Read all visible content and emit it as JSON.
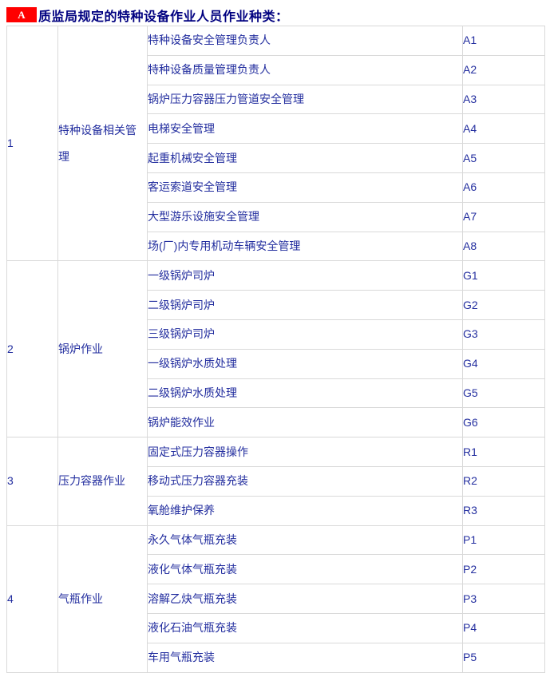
{
  "colors": {
    "badge_bg": "#ff0000",
    "badge_fg": "#ffffff",
    "title_color": "#000080",
    "table_text": "#232e9f",
    "border_color": "#d9d9d9"
  },
  "header": {
    "badge": "A",
    "title": "质监局规定的特种设备作业人员作业种类："
  },
  "table": {
    "sections": [
      {
        "no": "1",
        "category": "特种设备相关管理",
        "items": [
          {
            "name": "特种设备安全管理负责人",
            "code": "A1"
          },
          {
            "name": "特种设备质量管理负责人",
            "code": "A2"
          },
          {
            "name": "锅炉压力容器压力管道安全管理",
            "code": "A3"
          },
          {
            "name": "电梯安全管理",
            "code": "A4"
          },
          {
            "name": "起重机械安全管理",
            "code": "A5"
          },
          {
            "name": "客运索道安全管理",
            "code": "A6"
          },
          {
            "name": "大型游乐设施安全管理",
            "code": "A7"
          },
          {
            "name": "场(厂)内专用机动车辆安全管理",
            "code": "A8"
          }
        ]
      },
      {
        "no": "2",
        "category": "锅炉作业",
        "items": [
          {
            "name": "一级锅炉司炉",
            "code": "G1"
          },
          {
            "name": "二级锅炉司炉",
            "code": "G2"
          },
          {
            "name": "三级锅炉司炉",
            "code": "G3"
          },
          {
            "name": "一级锅炉水质处理",
            "code": "G4"
          },
          {
            "name": "二级锅炉水质处理",
            "code": "G5"
          },
          {
            "name": "锅炉能效作业",
            "code": "G6"
          }
        ]
      },
      {
        "no": "3",
        "category": "压力容器作业",
        "items": [
          {
            "name": "固定式压力容器操作",
            "code": "R1"
          },
          {
            "name": "移动式压力容器充装",
            "code": "R2"
          },
          {
            "name": "氧舱维护保养",
            "code": "R3"
          }
        ]
      },
      {
        "no": "4",
        "category": "气瓶作业",
        "items": [
          {
            "name": "永久气体气瓶充装",
            "code": "P1"
          },
          {
            "name": "液化气体气瓶充装",
            "code": "P2"
          },
          {
            "name": "溶解乙炔气瓶充装",
            "code": "P3"
          },
          {
            "name": "液化石油气瓶充装",
            "code": "P4"
          },
          {
            "name": "车用气瓶充装",
            "code": "P5"
          }
        ]
      }
    ]
  }
}
